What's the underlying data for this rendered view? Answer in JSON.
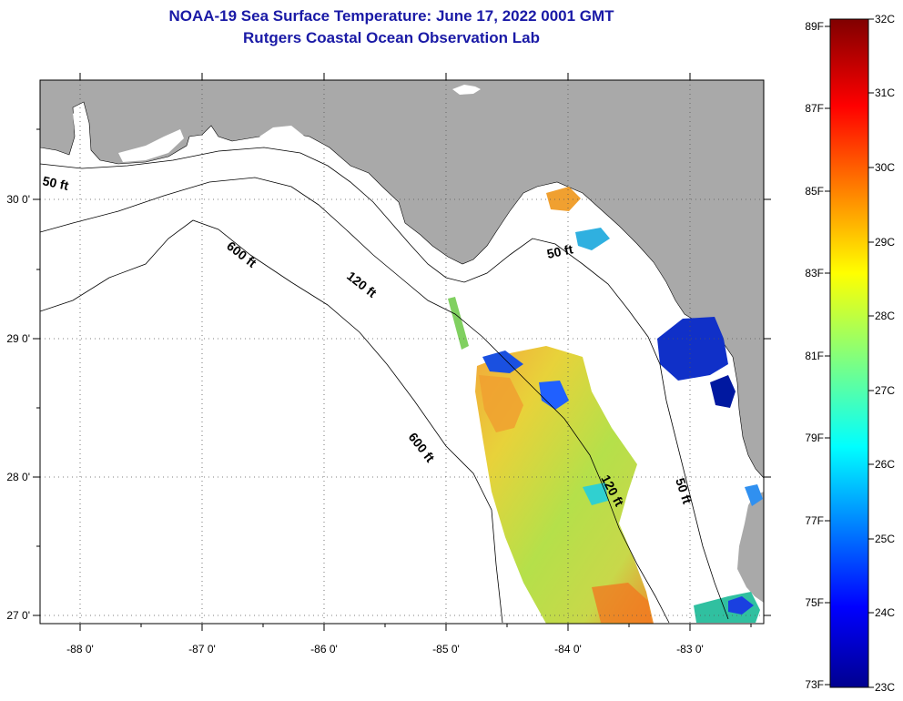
{
  "header": {
    "title": "NOAA-19 Sea Surface Temperature:  June 17, 2022 0001 GMT",
    "subtitle": "Rutgers Coastal Ocean Observation Lab"
  },
  "axes": {
    "lon_ticks": [
      "-88 0'",
      "-87 0'",
      "-86 0'",
      "-85 0'",
      "-84 0'",
      "-83 0'"
    ],
    "lat_ticks": [
      "30 0'",
      "29 0'",
      "28 0'",
      "27 0'"
    ]
  },
  "contours": {
    "c50a": "50 ft",
    "c600a": "600 ft",
    "c120a": "120 ft",
    "c50b": "50 ft",
    "c600b": "600 ft",
    "c120b": "120 ft",
    "c50c": "50 ft"
  },
  "colorbar": {
    "fahrenheit": [
      "89F",
      "87F",
      "85F",
      "83F",
      "81F",
      "79F",
      "77F",
      "75F",
      "73F"
    ],
    "celsius": [
      "32C",
      "31C",
      "30C",
      "29C",
      "28C",
      "27C",
      "26C",
      "25C",
      "24C",
      "23C"
    ]
  },
  "colors": {
    "land": "#a9a9a9",
    "water_no_data": "#ffffff",
    "title": "#1a1aa6"
  }
}
